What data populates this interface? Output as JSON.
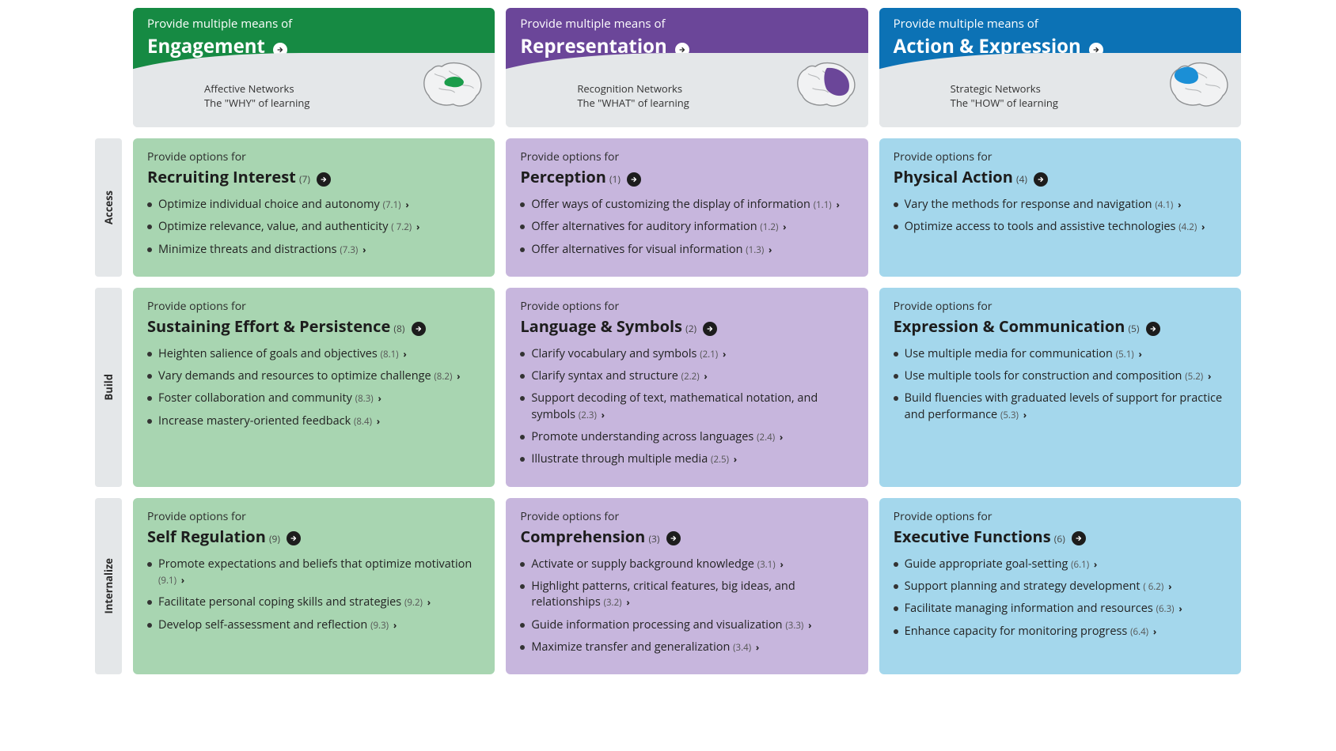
{
  "colors": {
    "green_header": "#168a43",
    "green_cell": "#a8d5b1",
    "purple_header": "#6b4699",
    "purple_cell": "#c7b6dd",
    "blue_header": "#0c72b5",
    "blue_cell": "#a4d7ec",
    "grey": "#e4e7e9",
    "text": "#2b2b2b"
  },
  "header_lead": "Provide multiple means of",
  "options_lead": "Provide options for",
  "rows": [
    "Access",
    "Build",
    "Internalize"
  ],
  "columns": [
    {
      "key": "engagement",
      "title": "Engagement",
      "network_line1": "Affective Networks",
      "network_line2": "The \"WHY\" of learning",
      "header_color": "#168a43",
      "cell_color": "#a8d5b1",
      "brain_fill": "#1a9c4a",
      "cells": [
        {
          "title": "Recruiting Interest",
          "num": "(7)",
          "items": [
            {
              "text": "Optimize individual choice and autonomy",
              "code": "(7.1)"
            },
            {
              "text": "Optimize relevance, value, and authenticity",
              "code": "( 7.2)"
            },
            {
              "text": "Minimize threats and distractions",
              "code": "(7.3)"
            }
          ]
        },
        {
          "title": "Sustaining Effort & Persistence",
          "num": "(8)",
          "items": [
            {
              "text": "Heighten salience of goals and objectives",
              "code": "(8.1)"
            },
            {
              "text": "Vary demands and resources to optimize challenge",
              "code": "(8.2)"
            },
            {
              "text": "Foster collaboration and community",
              "code": "(8.3)"
            },
            {
              "text": "Increase mastery-oriented feedback",
              "code": "(8.4)"
            }
          ]
        },
        {
          "title": "Self Regulation",
          "num": "(9)",
          "items": [
            {
              "text": "Promote expectations and beliefs that optimize motivation",
              "code": "(9.1)"
            },
            {
              "text": "Facilitate personal coping skills and strategies",
              "code": "(9.2)"
            },
            {
              "text": "Develop self-assessment and reflection",
              "code": "(9.3)"
            }
          ]
        }
      ]
    },
    {
      "key": "representation",
      "title": "Representation",
      "network_line1": "Recognition Networks",
      "network_line2": "The \"WHAT\" of learning",
      "header_color": "#6b4699",
      "cell_color": "#c7b6dd",
      "brain_fill": "#6b4699",
      "cells": [
        {
          "title": "Perception",
          "num": "(1)",
          "items": [
            {
              "text": "Offer ways of customizing the display of information",
              "code": "(1.1)"
            },
            {
              "text": "Offer alternatives for auditory information",
              "code": "(1.2)"
            },
            {
              "text": "Offer alternatives for visual information",
              "code": "(1.3)"
            }
          ]
        },
        {
          "title": "Language & Symbols",
          "num": "(2)",
          "items": [
            {
              "text": "Clarify vocabulary and symbols",
              "code": "(2.1)"
            },
            {
              "text": "Clarify syntax and structure",
              "code": "(2.2)"
            },
            {
              "text": "Support decoding of text, mathematical notation, and symbols",
              "code": "(2.3)"
            },
            {
              "text": "Promote understanding across languages",
              "code": "(2.4)"
            },
            {
              "text": "Illustrate through multiple media",
              "code": "(2.5)"
            }
          ]
        },
        {
          "title": "Comprehension",
          "num": "(3)",
          "items": [
            {
              "text": "Activate or supply background knowledge",
              "code": "(3.1)"
            },
            {
              "text": "Highlight patterns, critical features, big ideas, and relationships",
              "code": "(3.2)"
            },
            {
              "text": "Guide information processing and visualization",
              "code": "(3.3)"
            },
            {
              "text": "Maximize transfer and generalization",
              "code": "(3.4)"
            }
          ]
        }
      ]
    },
    {
      "key": "action",
      "title": "Action & Expression",
      "network_line1": "Strategic Networks",
      "network_line2": "The \"HOW\" of learning",
      "header_color": "#0c72b5",
      "cell_color": "#a4d7ec",
      "brain_fill": "#1b8fd6",
      "cells": [
        {
          "title": "Physical Action",
          "num": "(4)",
          "items": [
            {
              "text": "Vary the methods for response and navigation",
              "code": "(4.1)"
            },
            {
              "text": "Optimize access to tools and assistive technologies",
              "code": "(4.2)"
            }
          ]
        },
        {
          "title": "Expression & Communication",
          "num": "(5)",
          "items": [
            {
              "text": "Use multiple media for communication",
              "code": "(5.1)"
            },
            {
              "text": "Use multiple tools for construction and composition",
              "code": "(5.2)"
            },
            {
              "text": "Build fluencies with graduated levels of support for practice and performance",
              "code": "(5.3)"
            }
          ]
        },
        {
          "title": "Executive Functions",
          "num": "(6)",
          "items": [
            {
              "text": "Guide appropriate goal-setting",
              "code": "(6.1)"
            },
            {
              "text": "Support planning and strategy development",
              "code": "( 6.2)"
            },
            {
              "text": "Facilitate managing information and resources",
              "code": "(6.3)"
            },
            {
              "text": "Enhance capacity for monitoring progress",
              "code": "(6.4)"
            }
          ]
        }
      ]
    }
  ]
}
